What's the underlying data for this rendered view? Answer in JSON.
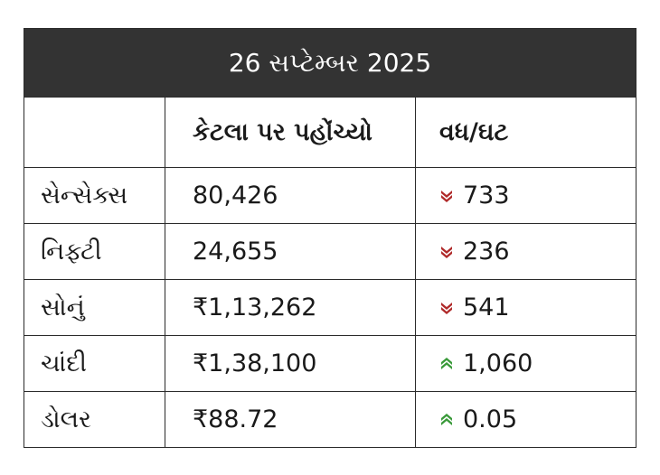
{
  "title": "26 સપ્ટેમ્બર 2025",
  "headers": [
    "",
    "કેટલા પર પહોંચ્યો",
    "વધ/ઘટ"
  ],
  "colors": {
    "title_bg": "#333333",
    "down": "#b02a2a",
    "up": "#3a9a3a"
  },
  "rows": [
    {
      "name": "સેન્સેક્સ",
      "value": "80,426",
      "direction": "down",
      "direction_icon": "double-chevron-down-icon",
      "change": "733"
    },
    {
      "name": "નિફ્ટી",
      "value": "24,655",
      "direction": "down",
      "direction_icon": "double-chevron-down-icon",
      "change": "236"
    },
    {
      "name": "સોનું",
      "value": "₹1,13,262",
      "direction": "down",
      "direction_icon": "double-chevron-down-icon",
      "change": "541"
    },
    {
      "name": "ચાંદી",
      "value": "₹1,38,100",
      "direction": "up",
      "direction_icon": "double-chevron-up-icon",
      "change": "1,060"
    },
    {
      "name": "ડોલર",
      "value": "₹88.72",
      "direction": "up",
      "direction_icon": "double-chevron-up-icon",
      "change": "0.05"
    }
  ]
}
